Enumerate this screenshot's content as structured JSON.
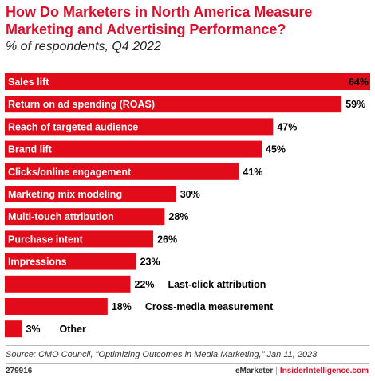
{
  "header": {
    "title": "How Do Marketers in North America Measure Marketing and Advertising Performance?",
    "subtitle": "% of respondents, Q4 2022"
  },
  "colors": {
    "accent": "#d9102b",
    "bar": "#e10b1a"
  },
  "chart_data": {
    "type": "bar",
    "orientation": "horizontal",
    "categories": [
      "Sales lift",
      "Return on ad spending (ROAS)",
      "Reach of targeted audience",
      "Brand lift",
      "Clicks/online engagement",
      "Marketing mix modeling",
      "Multi-touch attribution",
      "Purchase intent",
      "Impressions",
      "Last-click attribution",
      "Cross-media measurement",
      "Other"
    ],
    "values": [
      64,
      59,
      47,
      45,
      41,
      30,
      28,
      26,
      23,
      22,
      18,
      3
    ],
    "value_labels": [
      "64%",
      "59%",
      "47%",
      "45%",
      "41%",
      "30%",
      "28%",
      "26%",
      "23%",
      "22%",
      "18%",
      "3%"
    ],
    "xlim": [
      0,
      64
    ],
    "grid": false,
    "legend": "none"
  },
  "footer": {
    "source": "Source: CMO Council, \"Optimizing Outcomes in Media Marketing,\" Jan 11, 2023",
    "chart_id": "279916",
    "brand_left": "eMarketer",
    "brand_sep": "|",
    "brand_right": "InsiderIntelligence.com"
  }
}
